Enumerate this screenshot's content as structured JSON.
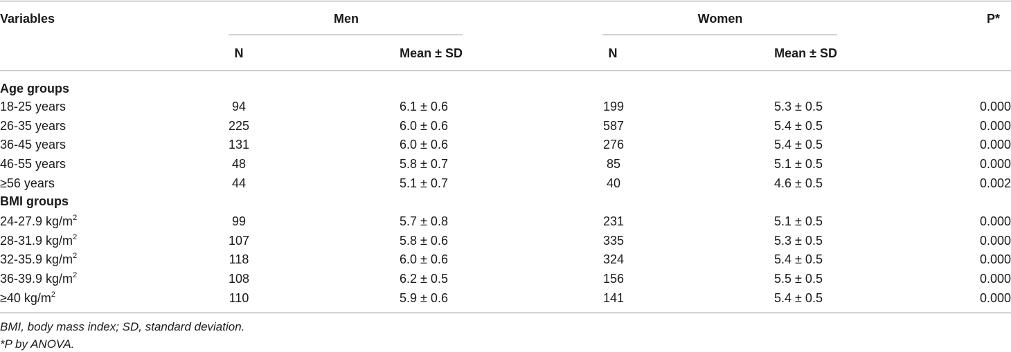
{
  "table": {
    "header": {
      "variables": "Variables",
      "men": "Men",
      "women": "Women",
      "p": "P*",
      "n": "N",
      "mean_sd": "Mean ± SD"
    },
    "sections": [
      {
        "title": "Age groups",
        "rows": [
          {
            "label": "18-25 years",
            "men_n": "94",
            "men_mean": "6.1 ± 0.6",
            "women_n": "199",
            "women_mean": "5.3 ± 0.5",
            "p": "0.000"
          },
          {
            "label": "26-35 years",
            "men_n": "225",
            "men_mean": "6.0 ± 0.6",
            "women_n": "587",
            "women_mean": "5.4 ± 0.5",
            "p": "0.000"
          },
          {
            "label": "36-45 years",
            "men_n": "131",
            "men_mean": "6.0 ± 0.6",
            "women_n": "276",
            "women_mean": "5.4 ± 0.5",
            "p": "0.000"
          },
          {
            "label": "46-55 years",
            "men_n": "48",
            "men_mean": "5.8 ± 0.7",
            "women_n": "85",
            "women_mean": "5.1 ± 0.5",
            "p": "0.000"
          },
          {
            "label": "≥56 years",
            "men_n": "44",
            "men_mean": "5.1 ± 0.7",
            "women_n": "40",
            "women_mean": "4.6 ± 0.5",
            "p": "0.002"
          }
        ]
      },
      {
        "title": "BMI groups",
        "rows": [
          {
            "label": "24-27.9 kg/m",
            "sup": "2",
            "men_n": "99",
            "men_mean": "5.7 ± 0.8",
            "women_n": "231",
            "women_mean": "5.1 ± 0.5",
            "p": "0.000"
          },
          {
            "label": "28-31.9 kg/m",
            "sup": "2",
            "men_n": "107",
            "men_mean": "5.8 ± 0.6",
            "women_n": "335",
            "women_mean": "5.3 ± 0.5",
            "p": "0.000"
          },
          {
            "label": "32-35.9 kg/m",
            "sup": "2",
            "men_n": "118",
            "men_mean": "6.0 ± 0.6",
            "women_n": "324",
            "women_mean": "5.4 ± 0.5",
            "p": "0.000"
          },
          {
            "label": "36-39.9 kg/m",
            "sup": "2",
            "men_n": "108",
            "men_mean": "6.2 ± 0.5",
            "women_n": "156",
            "women_mean": "5.5 ± 0.5",
            "p": "0.000"
          },
          {
            "label": "≥40 kg/m",
            "sup": "2",
            "men_n": "110",
            "men_mean": "5.9 ± 0.6",
            "women_n": "141",
            "women_mean": "5.4 ± 0.5",
            "p": "0.000"
          }
        ]
      }
    ],
    "footnotes": [
      "BMI, body mass index; SD, standard deviation.",
      "*P by ANOVA."
    ]
  }
}
